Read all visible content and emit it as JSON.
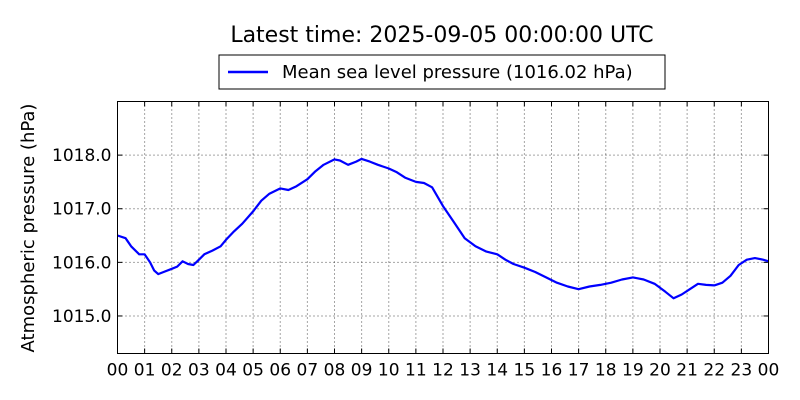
{
  "chart_data": {
    "type": "line",
    "title": "Latest time: 2025-09-05 00:00:00 UTC",
    "ylabel": "Atmospheric pressure (hPa)",
    "xlabel": "",
    "xlim": [
      0,
      24
    ],
    "ylim": [
      1014.3,
      1019.0
    ],
    "grid": true,
    "legend_position": "top-center",
    "series_color": "#0000ff",
    "x_ticks": [
      0,
      1,
      2,
      3,
      4,
      5,
      6,
      7,
      8,
      9,
      10,
      11,
      12,
      13,
      14,
      15,
      16,
      17,
      18,
      19,
      20,
      21,
      22,
      23,
      24
    ],
    "x_tick_labels": [
      "00",
      "01",
      "02",
      "03",
      "04",
      "05",
      "06",
      "07",
      "08",
      "09",
      "10",
      "11",
      "12",
      "13",
      "14",
      "15",
      "16",
      "17",
      "18",
      "19",
      "20",
      "21",
      "22",
      "23",
      "00"
    ],
    "y_ticks": [
      1015.0,
      1016.0,
      1017.0,
      1018.0
    ],
    "y_tick_labels": [
      "1015.0",
      "1016.0",
      "1017.0",
      "1018.0"
    ],
    "series": [
      {
        "name": "Mean sea level pressure (1016.02 hPa)",
        "x": [
          0,
          0.3,
          0.5,
          0.8,
          1.0,
          1.2,
          1.35,
          1.5,
          1.7,
          2.0,
          2.2,
          2.4,
          2.6,
          2.8,
          3.0,
          3.2,
          3.5,
          3.8,
          4.0,
          4.3,
          4.6,
          5.0,
          5.3,
          5.6,
          6.0,
          6.3,
          6.6,
          7.0,
          7.3,
          7.6,
          8.0,
          8.2,
          8.5,
          8.8,
          9.0,
          9.3,
          9.6,
          10.0,
          10.3,
          10.6,
          11.0,
          11.3,
          11.6,
          12.0,
          12.4,
          12.8,
          13.2,
          13.6,
          14.0,
          14.3,
          14.6,
          15.0,
          15.4,
          15.8,
          16.2,
          16.6,
          17.0,
          17.4,
          17.8,
          18.2,
          18.6,
          19.0,
          19.4,
          19.8,
          20.2,
          20.5,
          20.8,
          21.1,
          21.4,
          21.7,
          22.0,
          22.3,
          22.6,
          22.9,
          23.2,
          23.5,
          23.8,
          24.0
        ],
        "y": [
          1016.5,
          1016.45,
          1016.3,
          1016.15,
          1016.15,
          1016.0,
          1015.85,
          1015.78,
          1015.82,
          1015.88,
          1015.92,
          1016.02,
          1015.97,
          1015.95,
          1016.05,
          1016.15,
          1016.22,
          1016.3,
          1016.42,
          1016.58,
          1016.72,
          1016.95,
          1017.15,
          1017.28,
          1017.38,
          1017.35,
          1017.42,
          1017.55,
          1017.7,
          1017.82,
          1017.92,
          1017.9,
          1017.82,
          1017.88,
          1017.93,
          1017.88,
          1017.82,
          1017.75,
          1017.68,
          1017.58,
          1017.5,
          1017.48,
          1017.4,
          1017.05,
          1016.75,
          1016.45,
          1016.3,
          1016.2,
          1016.15,
          1016.05,
          1015.97,
          1015.9,
          1015.82,
          1015.72,
          1015.62,
          1015.55,
          1015.5,
          1015.55,
          1015.58,
          1015.62,
          1015.68,
          1015.72,
          1015.68,
          1015.6,
          1015.45,
          1015.33,
          1015.4,
          1015.5,
          1015.6,
          1015.58,
          1015.57,
          1015.62,
          1015.75,
          1015.95,
          1016.05,
          1016.08,
          1016.05,
          1016.02
        ]
      }
    ]
  }
}
